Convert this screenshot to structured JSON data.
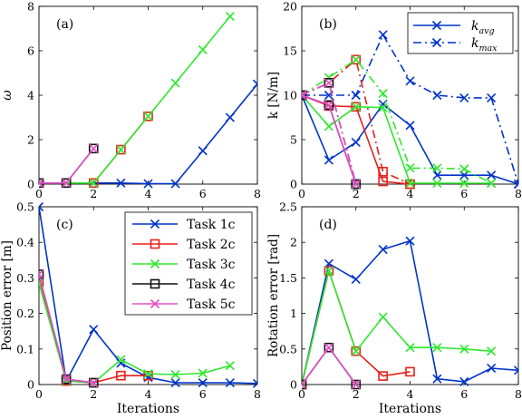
{
  "colors": {
    "task1": "#0033cc",
    "task2": "#e8201a",
    "task3": "#2ee82e",
    "task4": "#111111",
    "task5": "#e64ec8"
  },
  "chart_data": [
    {
      "panel": "(a)",
      "type": "line",
      "xlabel": "",
      "ylabel": "ω",
      "xlim": [
        0,
        8
      ],
      "ylim": [
        0,
        8
      ],
      "xticks": [
        "0",
        "2",
        "4",
        "6",
        "8"
      ],
      "yticks": [
        "0",
        "2",
        "4",
        "6",
        "8"
      ],
      "series": [
        {
          "key": "task1",
          "marker": "x",
          "x": [
            0,
            1,
            2,
            3,
            4,
            5,
            6,
            7,
            8
          ],
          "y": [
            0.05,
            0.05,
            0.05,
            0.05,
            0.02,
            0.02,
            1.5,
            3.0,
            4.5
          ]
        },
        {
          "key": "task2",
          "marker": "s",
          "x": [
            0,
            1,
            2,
            3,
            4
          ],
          "y": [
            0.05,
            0.05,
            0.05,
            1.55,
            3.05
          ]
        },
        {
          "key": "task3",
          "marker": "x",
          "x": [
            0,
            1,
            2,
            3,
            4,
            5,
            6,
            7
          ],
          "y": [
            0.05,
            0.05,
            0.05,
            1.55,
            3.05,
            4.55,
            6.05,
            7.55
          ]
        },
        {
          "key": "task4",
          "marker": "s",
          "x": [
            0,
            1,
            2
          ],
          "y": [
            0.05,
            0.05,
            1.6
          ]
        },
        {
          "key": "task5",
          "marker": "x",
          "x": [
            0,
            1,
            2
          ],
          "y": [
            0.05,
            0.05,
            1.6
          ]
        }
      ]
    },
    {
      "panel": "(b)",
      "type": "line",
      "xlabel": "",
      "ylabel": "k [N/m]",
      "xlim": [
        0,
        8
      ],
      "ylim": [
        0,
        20
      ],
      "xticks": [
        "0",
        "2",
        "4",
        "6",
        "8"
      ],
      "yticks": [
        "0",
        "5",
        "10",
        "15",
        "20"
      ],
      "legend": [
        {
          "label": "k",
          "sub": "avg",
          "dash": "solid"
        },
        {
          "label": "k",
          "sub": "max",
          "dash": "dashdot"
        }
      ],
      "series": [
        {
          "key": "task1",
          "marker": "x",
          "dash": "solid",
          "x": [
            0,
            1,
            2,
            3,
            4,
            5,
            6,
            7,
            8
          ],
          "y": [
            10,
            2.7,
            4.7,
            9,
            6.6,
            1,
            1,
            1,
            0
          ]
        },
        {
          "key": "task1",
          "marker": "x",
          "dash": "dashdot",
          "x": [
            0,
            1,
            2,
            3,
            4,
            5,
            6,
            7,
            8
          ],
          "y": [
            10,
            10,
            10,
            16.8,
            11.6,
            10,
            9.7,
            9.7,
            0
          ]
        },
        {
          "key": "task2",
          "marker": "s",
          "dash": "solid",
          "x": [
            0,
            1,
            2,
            3,
            4
          ],
          "y": [
            10,
            8.8,
            8.7,
            0.3,
            0
          ]
        },
        {
          "key": "task2",
          "marker": "s",
          "dash": "dashdot",
          "x": [
            0,
            1,
            2,
            3,
            4
          ],
          "y": [
            10,
            11.4,
            14,
            1.4,
            0
          ]
        },
        {
          "key": "task3",
          "marker": "x",
          "dash": "solid",
          "x": [
            0,
            1,
            2,
            3,
            4,
            5,
            6,
            7
          ],
          "y": [
            10,
            6.5,
            8.7,
            8.6,
            0.1,
            0.1,
            0.1,
            0.1
          ]
        },
        {
          "key": "task3",
          "marker": "x",
          "dash": "dashdot",
          "x": [
            0,
            1,
            2,
            3,
            4,
            5,
            6,
            7
          ],
          "y": [
            10,
            12,
            14,
            10.2,
            1.8,
            1.8,
            1.7,
            0.1
          ]
        },
        {
          "key": "task4",
          "marker": "s",
          "dash": "solid",
          "x": [
            0,
            1,
            2
          ],
          "y": [
            10,
            8.9,
            0
          ]
        },
        {
          "key": "task4",
          "marker": "s",
          "dash": "dashdot",
          "x": [
            0,
            1,
            2
          ],
          "y": [
            10,
            11.4,
            0
          ]
        },
        {
          "key": "task5",
          "marker": "x",
          "dash": "solid",
          "x": [
            0,
            1,
            2
          ],
          "y": [
            10,
            8.9,
            0
          ]
        },
        {
          "key": "task5",
          "marker": "x",
          "dash": "dashdot",
          "x": [
            0,
            1,
            2
          ],
          "y": [
            10,
            11.4,
            0
          ]
        }
      ]
    },
    {
      "panel": "(c)",
      "type": "line",
      "xlabel": "Iterations",
      "ylabel": "Position error [m]",
      "xlim": [
        0,
        8
      ],
      "ylim": [
        0,
        0.5
      ],
      "xticks": [
        "0",
        "2",
        "4",
        "6",
        "8"
      ],
      "yticks": [
        "0",
        "0.1",
        "0.2",
        "0.3",
        "0.4",
        "0.5"
      ],
      "legend": [
        {
          "label": "Task 1c",
          "key": "task1",
          "marker": "x"
        },
        {
          "label": "Task 2c",
          "key": "task2",
          "marker": "s"
        },
        {
          "label": "Task 3c",
          "key": "task3",
          "marker": "x"
        },
        {
          "label": "Task 4c",
          "key": "task4",
          "marker": "s"
        },
        {
          "label": "Task 5c",
          "key": "task5",
          "marker": "x"
        }
      ],
      "series": [
        {
          "key": "task1",
          "marker": "x",
          "x": [
            0,
            1,
            2,
            3,
            4,
            5,
            6,
            7,
            8
          ],
          "y": [
            0.5,
            0.01,
            0.155,
            0.06,
            0.02,
            0.005,
            0.005,
            0.005,
            0.003
          ]
        },
        {
          "key": "task2",
          "marker": "s",
          "x": [
            0,
            1,
            2,
            3,
            4
          ],
          "y": [
            0.29,
            0.01,
            0.005,
            0.025,
            0.025
          ]
        },
        {
          "key": "task3",
          "marker": "x",
          "x": [
            0,
            1,
            2,
            3,
            4,
            5,
            6,
            7
          ],
          "y": [
            0.285,
            0.01,
            0.005,
            0.07,
            0.03,
            0.028,
            0.032,
            0.053
          ]
        },
        {
          "key": "task4",
          "marker": "s",
          "x": [
            0,
            1,
            2
          ],
          "y": [
            0.31,
            0.015,
            0.005
          ]
        },
        {
          "key": "task5",
          "marker": "x",
          "x": [
            0,
            1,
            2
          ],
          "y": [
            0.31,
            0.015,
            0.005
          ]
        }
      ]
    },
    {
      "panel": "(d)",
      "type": "line",
      "xlabel": "Iterations",
      "ylabel": "Rotation error [rad]",
      "xlim": [
        0,
        8
      ],
      "ylim": [
        0,
        2.5
      ],
      "xticks": [
        "0",
        "2",
        "4",
        "6",
        "8"
      ],
      "yticks": [
        "0",
        "0.5",
        "1",
        "1.5",
        "2",
        "2.5"
      ],
      "series": [
        {
          "key": "task1",
          "marker": "x",
          "x": [
            0,
            1,
            2,
            3,
            4,
            5,
            6,
            7,
            8
          ],
          "y": [
            0,
            1.7,
            1.48,
            1.9,
            2.02,
            0.08,
            0.04,
            0.23,
            0.2
          ]
        },
        {
          "key": "task2",
          "marker": "s",
          "x": [
            0,
            1,
            2,
            3,
            4
          ],
          "y": [
            0,
            1.6,
            0.47,
            0.12,
            0.18
          ]
        },
        {
          "key": "task3",
          "marker": "x",
          "x": [
            0,
            1,
            2,
            3,
            4,
            5,
            6,
            7
          ],
          "y": [
            0,
            1.6,
            0.47,
            0.95,
            0.52,
            0.52,
            0.5,
            0.47
          ]
        },
        {
          "key": "task4",
          "marker": "s",
          "x": [
            0,
            1,
            2
          ],
          "y": [
            0,
            0.52,
            0
          ]
        },
        {
          "key": "task5",
          "marker": "x",
          "x": [
            0,
            1,
            2
          ],
          "y": [
            0,
            0.52,
            0
          ]
        }
      ]
    }
  ]
}
